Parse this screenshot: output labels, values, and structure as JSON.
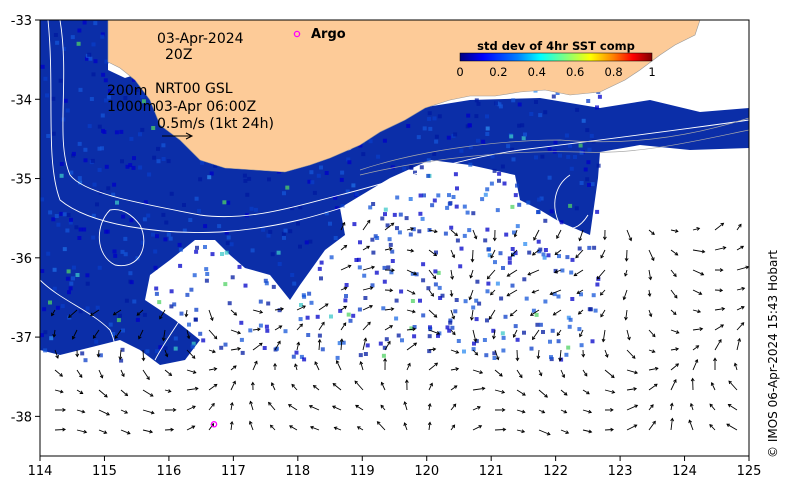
{
  "header": {
    "date": "03-Apr-2024",
    "time": "20Z",
    "argo_label": "Argo"
  },
  "legend": {
    "title": "std dev of 4hr SST comp",
    "ticks": [
      "0",
      "0.2",
      "0.4",
      "0.6",
      "0.8",
      "1"
    ],
    "range": [
      0,
      1
    ],
    "colormap": [
      "#00007f",
      "#0000ff",
      "#007fff",
      "#00ffff",
      "#7fff7f",
      "#ffff00",
      "#ff7f00",
      "#ff0000",
      "#7f0000"
    ]
  },
  "annotations": {
    "contour_200": "200m",
    "nrt": "NRT00 GSL",
    "contour_1000": "1000m",
    "valid_time": "03-Apr 06:00Z",
    "scale_vector": "0.5m/s (1kt 24h)"
  },
  "axes": {
    "x_ticks": [
      "114",
      "115",
      "116",
      "117",
      "118",
      "119",
      "120",
      "121",
      "122",
      "123",
      "124",
      "125"
    ],
    "y_ticks": [
      "-33",
      "-34",
      "-35",
      "-36",
      "-37",
      "-38"
    ],
    "x_range": [
      114,
      125
    ],
    "y_range": [
      -38.5,
      -33
    ]
  },
  "copyright": "© IMOS 06-Apr-2024 15:43 Hobart",
  "colors": {
    "land": "#fdcb98",
    "sst_base": "#0b2ea8",
    "argo_marker": "#ff00ff"
  },
  "argo_floats": [
    {
      "lon": 116.7,
      "lat": -38.1
    }
  ]
}
